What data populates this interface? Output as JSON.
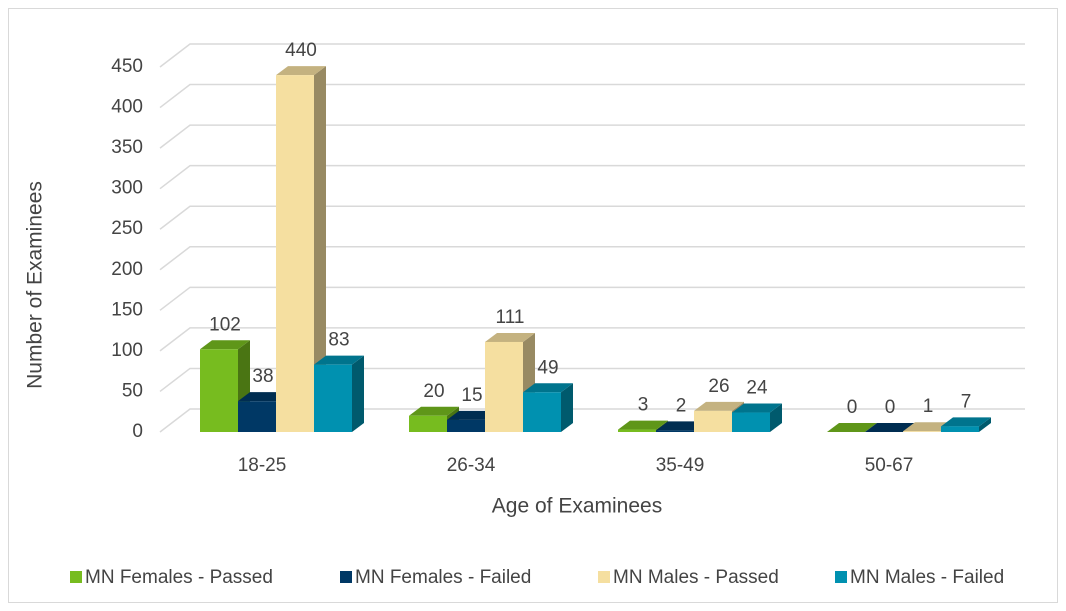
{
  "chart_data": {
    "type": "bar3d",
    "xlabel": "Age of Examinees",
    "ylabel": "Number of Examinees",
    "categories": [
      "18-25",
      "26-34",
      "35-49",
      "50-67"
    ],
    "series": [
      {
        "name": "MN Females - Passed",
        "color": "#77bc1f",
        "values": [
          102,
          20,
          3,
          0
        ]
      },
      {
        "name": "MN Females - Failed",
        "color": "#003865",
        "values": [
          38,
          15,
          2,
          0
        ]
      },
      {
        "name": "MN Males - Passed",
        "color": "#f5dfa0",
        "values": [
          440,
          111,
          26,
          1
        ]
      },
      {
        "name": "MN Males - Failed",
        "color": "#0091b0",
        "values": [
          83,
          49,
          24,
          7
        ]
      }
    ],
    "ylim": [
      0,
      450
    ],
    "yticks": [
      0,
      50,
      100,
      150,
      200,
      250,
      300,
      350,
      400,
      450
    ],
    "grid": true,
    "legend": "bottom"
  }
}
